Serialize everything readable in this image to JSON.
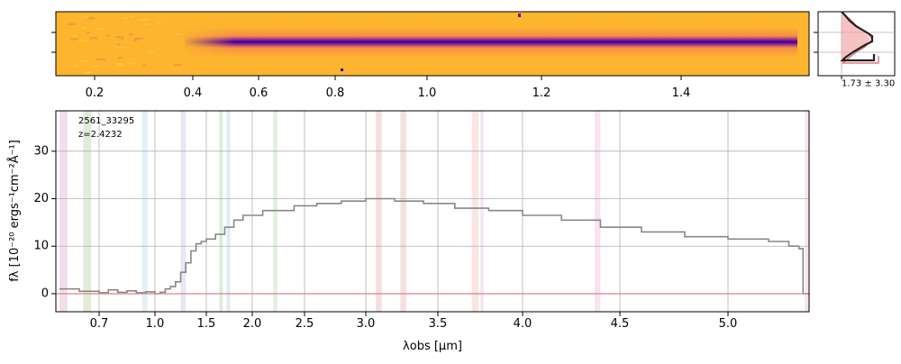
{
  "chart_data": [
    {
      "type": "heatmap",
      "panel": "2D spectrum",
      "x_tick_labels": [
        "0.2",
        "0.4",
        "0.6",
        "0.8",
        "1.0",
        "1.2",
        "1.4"
      ],
      "x_ticks": [
        0.2,
        0.4,
        0.6,
        0.8,
        1.0,
        1.2,
        1.4
      ],
      "colormap": "plasma",
      "trace": "dark horizontal trace along the middle row from about 0.4 to 1.6"
    },
    {
      "type": "line",
      "panel": "spatial profile",
      "annotation": "1.73 ± 3.30",
      "series": [
        {
          "name": "",
          "color": "#222222",
          "profile": [
            0.05,
            0.1,
            0.2,
            0.45,
            0.8,
            1.0,
            0.7,
            0.35,
            0.15,
            0.08
          ]
        },
        {
          "name": "",
          "color": "#e06060",
          "profile": [
            0.05,
            0.12,
            0.25,
            0.5,
            0.85,
            1.0,
            0.75,
            0.4,
            0.18,
            0.08
          ]
        }
      ]
    },
    {
      "type": "line",
      "panel": "1D spectrum",
      "xlabel": "λobs [μm]",
      "ylabel": "fλ [10⁻²⁰ ergs⁻¹cm⁻²Å⁻¹]",
      "annotation_lines": [
        "2561_33295",
        "z=2.4232"
      ],
      "x_ticks": [
        0.7,
        1.0,
        1.5,
        2.0,
        2.5,
        3.0,
        3.5,
        4.0,
        4.5,
        5.0
      ],
      "x_tick_labels": [
        "0.7",
        "1.0",
        "1.5",
        "2.0",
        "2.5",
        "3.0",
        "3.5",
        "4.0",
        "4.5",
        "5.0"
      ],
      "y_ticks": [
        0,
        10,
        20,
        30
      ],
      "y_tick_labels": [
        "0",
        "10",
        "20",
        "30"
      ],
      "ylim": [
        -3.8,
        38.5
      ],
      "grid": true,
      "series": [
        {
          "name": "",
          "color": "#888888",
          "x": [
            0.6,
            0.65,
            0.7,
            0.75,
            0.8,
            0.85,
            0.9,
            0.95,
            1.0,
            1.05,
            1.1,
            1.15,
            1.2,
            1.25,
            1.3,
            1.35,
            1.4,
            1.45,
            1.5,
            1.6,
            1.7,
            1.8,
            1.9,
            2.0,
            2.1,
            2.2,
            2.4,
            2.6,
            2.8,
            3.0,
            3.2,
            3.4,
            3.6,
            3.8,
            4.0,
            4.2,
            4.4,
            4.6,
            4.8,
            5.0,
            5.2,
            5.3,
            5.35
          ],
          "y": [
            1.0,
            0.5,
            0.2,
            0.8,
            0.3,
            0.6,
            0.2,
            0.4,
            0.0,
            0.3,
            1.0,
            1.5,
            2.5,
            4.5,
            6.5,
            9.0,
            10.5,
            11.0,
            11.5,
            12.5,
            14.0,
            15.5,
            16.5,
            16.5,
            17.5,
            17.5,
            18.5,
            19.0,
            19.5,
            20.0,
            19.5,
            19.0,
            18.0,
            17.5,
            16.5,
            15.5,
            14.0,
            13.0,
            12.0,
            11.5,
            11.0,
            10.0,
            9.5
          ]
        },
        {
          "name": "",
          "color": "#e88080",
          "x": [
            0.6,
            5.4
          ],
          "y": [
            0,
            0
          ]
        }
      ],
      "shaded_bands": [
        {
          "x": [
            0.6,
            0.62
          ],
          "color": "#d8a0c8"
        },
        {
          "x": [
            0.66,
            0.68
          ],
          "color": "#a8c890"
        },
        {
          "x": [
            0.93,
            0.96
          ],
          "color": "#a8d8e8"
        },
        {
          "x": [
            1.25,
            1.3
          ],
          "color": "#b8b8e0"
        },
        {
          "x": [
            1.64,
            1.68
          ],
          "color": "#98c898"
        },
        {
          "x": [
            1.72,
            1.76
          ],
          "color": "#a0c8e0"
        },
        {
          "x": [
            2.2,
            2.24
          ],
          "color": "#a8d8a8"
        },
        {
          "x": [
            3.07,
            3.11
          ],
          "color": "#d8a0a0"
        },
        {
          "x": [
            3.24,
            3.28
          ],
          "color": "#d8a8a0"
        },
        {
          "x": [
            3.7,
            3.74
          ],
          "color": "#f0b8a8"
        },
        {
          "x": [
            3.75,
            3.77
          ],
          "color": "#e0b8e0"
        },
        {
          "x": [
            4.37,
            4.4
          ],
          "color": "#e8b0d8"
        },
        {
          "x": [
            5.38,
            5.4
          ],
          "color": "#e8b0d8"
        }
      ]
    }
  ]
}
